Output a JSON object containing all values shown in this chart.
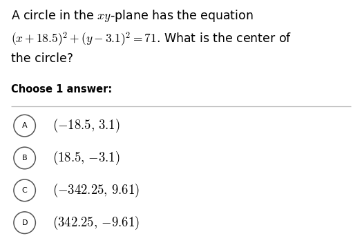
{
  "bg_color": "#ffffff",
  "text_color": "#000000",
  "circle_edge_color": "#555555",
  "divider_color": "#bbbbbb",
  "q_line1": "A circle in the $xy$-plane has the equation",
  "q_line2": "$(x + 18.5)^2 + (y - 3.1)^2 = 71$. What is the center of",
  "q_line3": "the circle?",
  "choose_label": "Choose 1 answer:",
  "options": [
    {
      "letter": "A",
      "text": "$(-18.5,\\, 3.1)$"
    },
    {
      "letter": "B",
      "text": "$(18.5,\\, {-3.1})$"
    },
    {
      "letter": "C",
      "text": "$(-342.25,\\, 9.61)$"
    },
    {
      "letter": "D",
      "text": "$(342.25,\\, {-9.61})$"
    }
  ],
  "font_size_q": 12.5,
  "font_size_choose": 10.5,
  "font_size_options": 13.5,
  "font_size_letters": 8.0
}
